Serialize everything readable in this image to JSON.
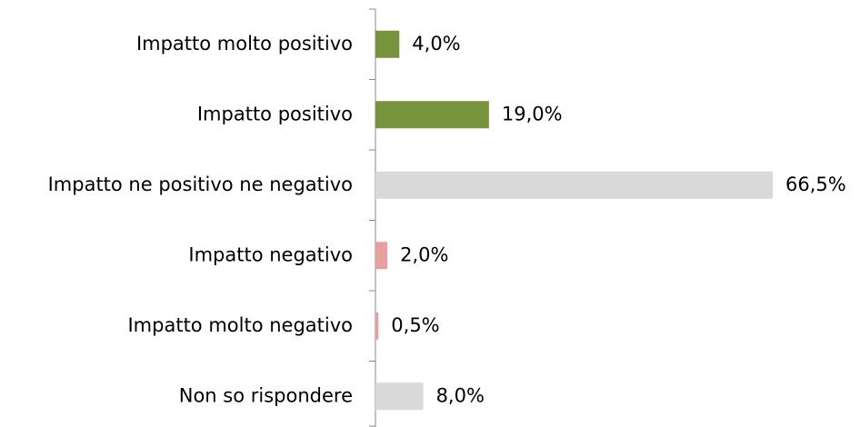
{
  "chart_data": {
    "type": "hbar",
    "categories": [
      "Impatto molto positivo",
      "Impatto positivo",
      "Impatto ne positivo ne negativo",
      "Impatto negativo",
      "Impatto molto negativo",
      "Non so rispondere"
    ],
    "values": [
      4.0,
      19.0,
      66.5,
      2.0,
      0.5,
      8.0
    ],
    "value_labels": [
      "4,0%",
      "19,0%",
      "66,5%",
      "2,0%",
      "0,5%",
      "8,0%"
    ],
    "colors": [
      "#77933c",
      "#77933c",
      "#d9d9d9",
      "#e6a0a0",
      "#e6a0a0",
      "#d9d9d9"
    ]
  }
}
